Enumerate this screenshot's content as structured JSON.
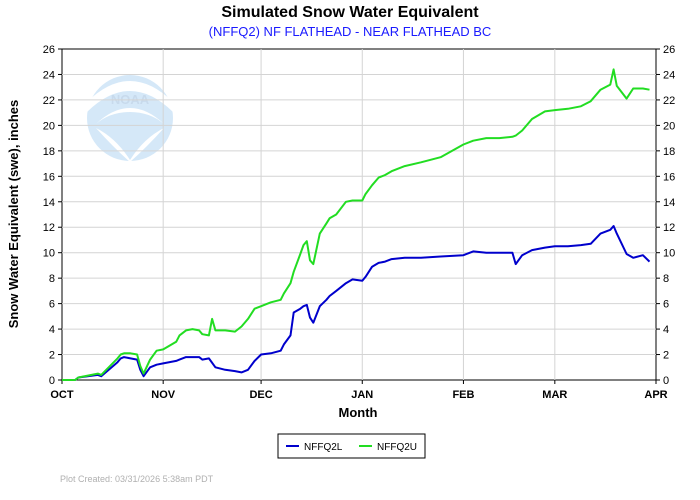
{
  "chart_data": {
    "type": "line",
    "title": "Simulated Snow Water Equivalent",
    "subtitle": "(NFFQ2) NF FLATHEAD - NEAR FLATHEAD BC",
    "ylabel": "Snow Water Equivalent (swe),  inches",
    "xlabel": "Month",
    "xlim": [
      "2025-10-01",
      "2026-04-01"
    ],
    "ylim": [
      0,
      26
    ],
    "yticks": [
      "0",
      "2",
      "4",
      "6",
      "8",
      "10",
      "12",
      "14",
      "16",
      "18",
      "20",
      "22",
      "24",
      "26"
    ],
    "xticks": [
      {
        "date": "2025-10-01",
        "label": "OCT"
      },
      {
        "date": "2025-11-01",
        "label": "NOV"
      },
      {
        "date": "2025-12-01",
        "label": "DEC"
      },
      {
        "date": "2026-01-01",
        "label": "JAN"
      },
      {
        "date": "2026-02-01",
        "label": "FEB"
      },
      {
        "date": "2026-03-01",
        "label": "MAR"
      },
      {
        "date": "2026-04-01",
        "label": "APR"
      }
    ],
    "grid": true,
    "legend_position": "bottom-center",
    "series": [
      {
        "name": "NFFQ2L",
        "color": "#0000cc",
        "x": [
          "2025-10-01",
          "2025-10-05",
          "2025-10-06",
          "2025-10-12",
          "2025-10-13",
          "2025-10-18",
          "2025-10-19",
          "2025-10-20",
          "2025-10-22",
          "2025-10-24",
          "2025-10-25",
          "2025-10-26",
          "2025-10-28",
          "2025-10-30",
          "2025-11-01",
          "2025-11-05",
          "2025-11-06",
          "2025-11-08",
          "2025-11-12",
          "2025-11-13",
          "2025-11-15",
          "2025-11-17",
          "2025-11-20",
          "2025-11-23",
          "2025-11-25",
          "2025-11-27",
          "2025-11-29",
          "2025-12-01",
          "2025-12-04",
          "2025-12-07",
          "2025-12-08",
          "2025-12-10",
          "2025-12-11",
          "2025-12-13",
          "2025-12-14",
          "2025-12-15",
          "2025-12-16",
          "2025-12-17",
          "2025-12-19",
          "2025-12-21",
          "2025-12-22",
          "2025-12-24",
          "2025-12-27",
          "2025-12-29",
          "2026-01-01",
          "2026-01-02",
          "2026-01-04",
          "2026-01-06",
          "2026-01-08",
          "2026-01-10",
          "2026-01-14",
          "2026-01-19",
          "2026-01-25",
          "2026-02-01",
          "2026-02-04",
          "2026-02-08",
          "2026-02-12",
          "2026-02-16",
          "2026-02-17",
          "2026-02-19",
          "2026-02-22",
          "2026-02-26",
          "2026-03-01",
          "2026-03-05",
          "2026-03-09",
          "2026-03-12",
          "2026-03-15",
          "2026-03-18",
          "2026-03-19",
          "2026-03-20",
          "2026-03-23",
          "2026-03-25",
          "2026-03-28",
          "2026-03-30"
        ],
        "values": [
          0,
          0,
          0.2,
          0.4,
          0.3,
          1.4,
          1.7,
          1.8,
          1.7,
          1.6,
          0.8,
          0.3,
          1.0,
          1.2,
          1.3,
          1.5,
          1.6,
          1.8,
          1.8,
          1.6,
          1.7,
          1.0,
          0.8,
          0.7,
          0.6,
          0.8,
          1.5,
          2.0,
          2.1,
          2.3,
          2.8,
          3.5,
          5.3,
          5.6,
          5.8,
          5.9,
          4.9,
          4.5,
          5.8,
          6.3,
          6.6,
          7.0,
          7.6,
          7.9,
          7.8,
          8.1,
          8.9,
          9.2,
          9.3,
          9.5,
          9.6,
          9.6,
          9.7,
          9.8,
          10.1,
          10.0,
          10.0,
          10.0,
          9.1,
          9.8,
          10.2,
          10.4,
          10.5,
          10.5,
          10.6,
          10.7,
          11.5,
          11.8,
          12.1,
          11.5,
          9.9,
          9.6,
          9.8,
          9.3
        ]
      },
      {
        "name": "NFFQ2U",
        "color": "#22dd22",
        "x": [
          "2025-10-01",
          "2025-10-05",
          "2025-10-06",
          "2025-10-12",
          "2025-10-13",
          "2025-10-18",
          "2025-10-19",
          "2025-10-20",
          "2025-10-22",
          "2025-10-24",
          "2025-10-25",
          "2025-10-26",
          "2025-10-28",
          "2025-10-30",
          "2025-11-01",
          "2025-11-05",
          "2025-11-06",
          "2025-11-08",
          "2025-11-10",
          "2025-11-12",
          "2025-11-13",
          "2025-11-15",
          "2025-11-16",
          "2025-11-17",
          "2025-11-20",
          "2025-11-23",
          "2025-11-25",
          "2025-11-27",
          "2025-11-29",
          "2025-12-01",
          "2025-12-04",
          "2025-12-07",
          "2025-12-08",
          "2025-12-10",
          "2025-12-11",
          "2025-12-13",
          "2025-12-14",
          "2025-12-15",
          "2025-12-16",
          "2025-12-17",
          "2025-12-19",
          "2025-12-21",
          "2025-12-22",
          "2025-12-24",
          "2025-12-27",
          "2025-12-29",
          "2026-01-01",
          "2026-01-02",
          "2026-01-04",
          "2026-01-06",
          "2026-01-08",
          "2026-01-10",
          "2026-01-14",
          "2026-01-19",
          "2026-01-25",
          "2026-02-01",
          "2026-02-04",
          "2026-02-08",
          "2026-02-12",
          "2026-02-16",
          "2026-02-17",
          "2026-02-19",
          "2026-02-22",
          "2026-02-26",
          "2026-03-01",
          "2026-03-05",
          "2026-03-09",
          "2026-03-12",
          "2026-03-15",
          "2026-03-18",
          "2026-03-19",
          "2026-03-20",
          "2026-03-23",
          "2026-03-25",
          "2026-03-28",
          "2026-03-30"
        ],
        "values": [
          0,
          0,
          0.2,
          0.5,
          0.4,
          1.7,
          2.0,
          2.1,
          2.1,
          2.0,
          1.1,
          0.5,
          1.6,
          2.3,
          2.4,
          3.0,
          3.5,
          3.9,
          4.0,
          3.9,
          3.6,
          3.5,
          4.8,
          3.9,
          3.9,
          3.8,
          4.2,
          4.8,
          5.6,
          5.8,
          6.1,
          6.3,
          6.8,
          7.6,
          8.5,
          9.9,
          10.6,
          10.9,
          9.4,
          9.1,
          11.5,
          12.3,
          12.7,
          13.0,
          14.0,
          14.1,
          14.1,
          14.6,
          15.3,
          15.9,
          16.1,
          16.4,
          16.8,
          17.1,
          17.5,
          18.5,
          18.8,
          19.0,
          19.0,
          19.1,
          19.2,
          19.6,
          20.5,
          21.1,
          21.2,
          21.3,
          21.5,
          21.9,
          22.8,
          23.2,
          24.4,
          23.1,
          22.1,
          22.9,
          22.9,
          22.8
        ]
      }
    ]
  },
  "logo_text": "NOAA",
  "footer": "Plot Created: 03/31/2026 5:38am PDT"
}
